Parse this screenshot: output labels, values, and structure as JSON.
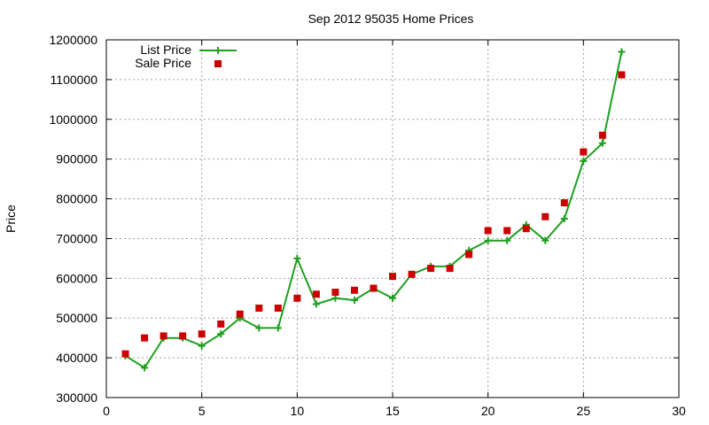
{
  "chart_data": {
    "type": "line",
    "title": "Sep 2012 95035 Home Prices",
    "xlabel": "",
    "ylabel": "Price",
    "xlim": [
      0,
      30
    ],
    "ylim": [
      300000,
      1200000
    ],
    "xticks": [
      0,
      5,
      10,
      15,
      20,
      25,
      30
    ],
    "yticks": [
      300000,
      400000,
      500000,
      600000,
      700000,
      800000,
      900000,
      1000000,
      1100000,
      1200000
    ],
    "grid": true,
    "legend_position": "top-left",
    "series": [
      {
        "name": "List Price",
        "style": "line-with-plus-markers",
        "color": "#1ea01e",
        "x": [
          1,
          2,
          3,
          4,
          5,
          6,
          7,
          8,
          9,
          10,
          11,
          12,
          13,
          14,
          15,
          16,
          17,
          18,
          19,
          20,
          21,
          22,
          23,
          24,
          25,
          26,
          27
        ],
        "y": [
          405000,
          375000,
          450000,
          450000,
          430000,
          460000,
          500000,
          475000,
          475000,
          650000,
          535000,
          550000,
          545000,
          575000,
          550000,
          610000,
          630000,
          630000,
          670000,
          695000,
          695000,
          735000,
          695000,
          750000,
          895000,
          940000,
          1170000
        ]
      },
      {
        "name": "Sale Price",
        "style": "square-markers",
        "color": "#cc0000",
        "x": [
          1,
          2,
          3,
          4,
          5,
          6,
          7,
          8,
          9,
          10,
          11,
          12,
          13,
          14,
          15,
          16,
          17,
          18,
          19,
          20,
          21,
          22,
          23,
          24,
          25,
          26,
          27
        ],
        "y": [
          410000,
          450000,
          455000,
          455000,
          460000,
          485000,
          510000,
          525000,
          525000,
          550000,
          560000,
          565000,
          570000,
          575000,
          605000,
          610000,
          625000,
          625000,
          660000,
          720000,
          720000,
          725000,
          755000,
          790000,
          918000,
          960000,
          1112000
        ]
      }
    ]
  }
}
